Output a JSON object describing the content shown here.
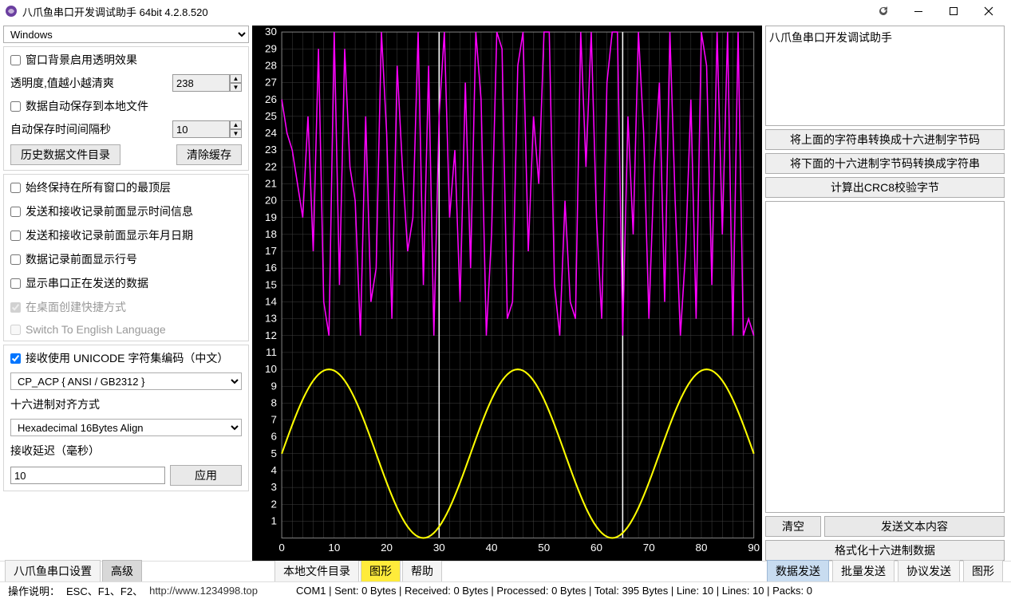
{
  "window": {
    "title": "八爪鱼串口开发调试助手 64bit 4.2.8.520",
    "icon_color": "#6b3fa0"
  },
  "left": {
    "platform_select": "Windows",
    "group1": {
      "chk_transparent": "窗口背景启用透明效果",
      "transparency_label": "透明度,值越小越清爽",
      "transparency_value": "238",
      "chk_autosave": "数据自动保存到本地文件",
      "autosave_interval_label": "自动保存时间间隔秒",
      "autosave_interval_value": "10",
      "btn_history": "历史数据文件目录",
      "btn_clear_cache": "清除缓存"
    },
    "group2": {
      "chk_always_top": "始终保持在所有窗口的最顶层",
      "chk_show_time": "发送和接收记录前面显示时间信息",
      "chk_show_date": "发送和接收记录前面显示年月日期",
      "chk_show_lineno": "数据记录前面显示行号",
      "chk_show_sending": "显示串口正在发送的数据",
      "chk_desktop_shortcut": "在桌面创建快捷方式",
      "chk_english": "Switch To English Language"
    },
    "group3": {
      "chk_unicode": "接收使用 UNICODE 字符集编码（中文）",
      "encoding_select": "CP_ACP             { ANSI / GB2312  }",
      "hex_align_label": "十六进制对齐方式",
      "hex_align_select": "Hexadecimal 16Bytes Align",
      "recv_delay_label": "接收延迟（毫秒）",
      "recv_delay_value": "10",
      "btn_apply": "应用"
    }
  },
  "chart": {
    "type": "line",
    "background_color": "#000000",
    "grid_color": "#404040",
    "axis_label_color": "#ffffff",
    "axis_fontsize": 11,
    "xlim": [
      0,
      90
    ],
    "xtick_step": 10,
    "ylim": [
      0,
      30
    ],
    "ytick_step": 1,
    "vertical_markers": [
      30,
      65
    ],
    "marker_color": "#ffffff",
    "series": [
      {
        "name": "magenta",
        "color": "#ff00ff",
        "stroke_width": 1.5,
        "data": [
          [
            0,
            26
          ],
          [
            1,
            24
          ],
          [
            2,
            23
          ],
          [
            3,
            21
          ],
          [
            4,
            19
          ],
          [
            5,
            25
          ],
          [
            6,
            17
          ],
          [
            7,
            29
          ],
          [
            8,
            14
          ],
          [
            9,
            12
          ],
          [
            10,
            30
          ],
          [
            11,
            15
          ],
          [
            12,
            29
          ],
          [
            13,
            22
          ],
          [
            14,
            20
          ],
          [
            15,
            12
          ],
          [
            16,
            25
          ],
          [
            17,
            14
          ],
          [
            18,
            16
          ],
          [
            19,
            30
          ],
          [
            20,
            24
          ],
          [
            21,
            13
          ],
          [
            22,
            28
          ],
          [
            23,
            22
          ],
          [
            24,
            17
          ],
          [
            25,
            19
          ],
          [
            26,
            30
          ],
          [
            27,
            15
          ],
          [
            28,
            28
          ],
          [
            29,
            12
          ],
          [
            30,
            25
          ],
          [
            31,
            30
          ],
          [
            32,
            19
          ],
          [
            33,
            23
          ],
          [
            34,
            14
          ],
          [
            35,
            27
          ],
          [
            36,
            16
          ],
          [
            37,
            30
          ],
          [
            38,
            26
          ],
          [
            39,
            12
          ],
          [
            40,
            18
          ],
          [
            41,
            30
          ],
          [
            42,
            29
          ],
          [
            43,
            13
          ],
          [
            44,
            14
          ],
          [
            45,
            28
          ],
          [
            46,
            30
          ],
          [
            47,
            17
          ],
          [
            48,
            25
          ],
          [
            49,
            21
          ],
          [
            50,
            30
          ],
          [
            51,
            30
          ],
          [
            52,
            15
          ],
          [
            53,
            12
          ],
          [
            54,
            20
          ],
          [
            55,
            14
          ],
          [
            56,
            13
          ],
          [
            57,
            30
          ],
          [
            58,
            22
          ],
          [
            59,
            30
          ],
          [
            60,
            19
          ],
          [
            61,
            13
          ],
          [
            62,
            27
          ],
          [
            63,
            30
          ],
          [
            64,
            30
          ],
          [
            65,
            12
          ],
          [
            66,
            25
          ],
          [
            67,
            18
          ],
          [
            68,
            30
          ],
          [
            69,
            24
          ],
          [
            70,
            13
          ],
          [
            71,
            22
          ],
          [
            72,
            27
          ],
          [
            73,
            14
          ],
          [
            74,
            30
          ],
          [
            75,
            20
          ],
          [
            76,
            12
          ],
          [
            77,
            17
          ],
          [
            78,
            26
          ],
          [
            79,
            13
          ],
          [
            80,
            30
          ],
          [
            81,
            28
          ],
          [
            82,
            15
          ],
          [
            83,
            30
          ],
          [
            84,
            18
          ],
          [
            85,
            30
          ],
          [
            86,
            12
          ],
          [
            87,
            30
          ],
          [
            88,
            12
          ],
          [
            89,
            13
          ],
          [
            90,
            12
          ]
        ]
      },
      {
        "name": "yellow",
        "color": "#ffff00",
        "stroke_width": 2,
        "formula": "sine",
        "amplitude": 5,
        "offset": 5,
        "period": 36,
        "phase": 0,
        "data": null
      }
    ]
  },
  "right": {
    "header_text": "八爪鱼串口开发调试助手",
    "btn_to_hex": "将上面的字符串转换成十六进制字节码",
    "btn_to_str": "将下面的十六进制字节码转换成字符串",
    "btn_crc8": "计算出CRC8校验字节",
    "btn_clear": "清空",
    "btn_send_text": "发送文本内容",
    "btn_format_hex": "格式化十六进制数据"
  },
  "tabs": {
    "left1": "八爪鱼串口设置",
    "left2": "高级",
    "center1": "本地文件目录",
    "center2": "图形",
    "center3": "帮助",
    "right1": "数据发送",
    "right2": "批量发送",
    "right3": "协议发送",
    "right4": "图形"
  },
  "status": {
    "help_label": "操作说明：",
    "keys": "ESC、F1、F2、",
    "url": "http://www.1234998.top",
    "com": "COM1 | Sent: 0 Bytes | Received: 0 Bytes | Processed: 0 Bytes | Total: 395 Bytes | Line: 10 | Lines: 10 | Packs: 0"
  }
}
